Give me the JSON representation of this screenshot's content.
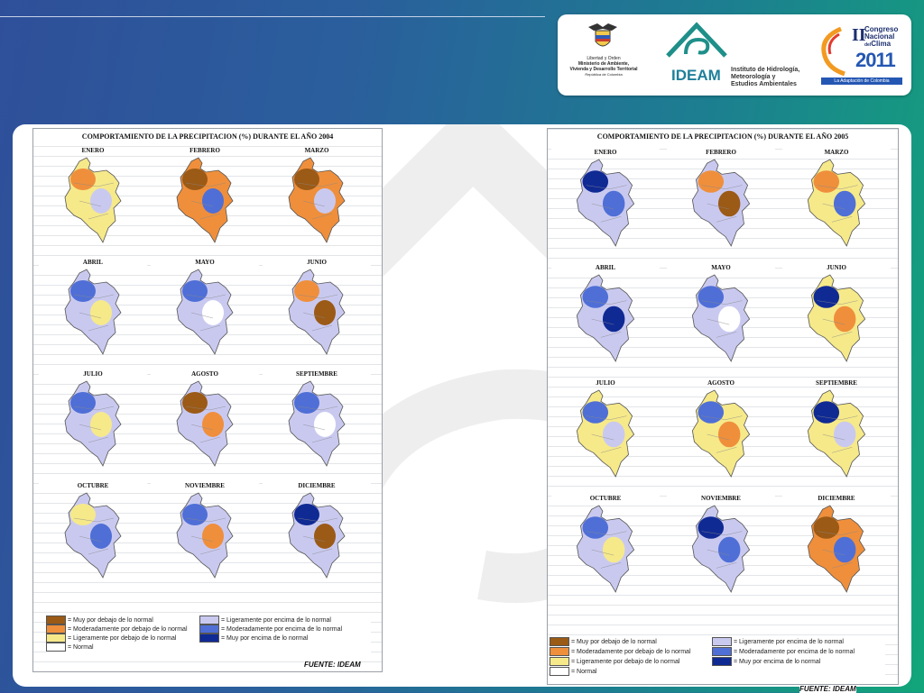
{
  "logos": {
    "ministry_lines": [
      "Libertad y Orden",
      "Ministerio de Ambiente,",
      "Vivienda y Desarrollo Territorial",
      "República de Colombia"
    ],
    "ideam_name": "IDEAM",
    "ideam_lines": [
      "Instituto de Hidrología,",
      "Meteorología y",
      "Estudios Ambientales"
    ],
    "congress_roman": "II",
    "congress_lines": [
      "Congreso",
      "Nacional",
      "Clima"
    ],
    "congress_small": "del",
    "congress_year": "2011",
    "congress_tagline": "La Adaptación de Colombia"
  },
  "colors": {
    "muy_debajo": "#9b5a16",
    "moderadamente_debajo": "#ef8f3c",
    "ligeramente_debajo": "#f6e98a",
    "normal": "#ffffff",
    "ligeramente_encima": "#c9c9f0",
    "moderadamente_encima": "#4f6fd6",
    "muy_encima": "#102a94"
  },
  "sheets": [
    {
      "title": "COMPORTAMIENTO DE LA PRECIPITACION (%) DURANTE EL AÑO 2004",
      "fuente": "FUENTE: IDEAM",
      "months": [
        {
          "name": "ENERO",
          "base": "ligeramente_debajo",
          "spots": [
            "moderadamente_debajo",
            "ligeramente_encima"
          ]
        },
        {
          "name": "FEBRERO",
          "base": "moderadamente_debajo",
          "spots": [
            "muy_debajo",
            "moderadamente_encima"
          ]
        },
        {
          "name": "MARZO",
          "base": "moderadamente_debajo",
          "spots": [
            "muy_debajo",
            "ligeramente_encima"
          ]
        },
        {
          "name": "ABRIL",
          "base": "ligeramente_encima",
          "spots": [
            "moderadamente_encima",
            "ligeramente_debajo"
          ]
        },
        {
          "name": "MAYO",
          "base": "ligeramente_encima",
          "spots": [
            "moderadamente_encima",
            "normal"
          ]
        },
        {
          "name": "JUNIO",
          "base": "ligeramente_encima",
          "spots": [
            "moderadamente_debajo",
            "muy_debajo"
          ]
        },
        {
          "name": "JULIO",
          "base": "ligeramente_encima",
          "spots": [
            "moderadamente_encima",
            "ligeramente_debajo"
          ]
        },
        {
          "name": "AGOSTO",
          "base": "ligeramente_encima",
          "spots": [
            "muy_debajo",
            "moderadamente_debajo"
          ]
        },
        {
          "name": "SEPTIEMBRE",
          "base": "ligeramente_encima",
          "spots": [
            "moderadamente_encima",
            "normal"
          ]
        },
        {
          "name": "OCTUBRE",
          "base": "ligeramente_encima",
          "spots": [
            "ligeramente_debajo",
            "moderadamente_encima"
          ]
        },
        {
          "name": "NOVIEMBRE",
          "base": "ligeramente_encima",
          "spots": [
            "moderadamente_encima",
            "moderadamente_debajo"
          ]
        },
        {
          "name": "DICIEMBRE",
          "base": "ligeramente_encima",
          "spots": [
            "muy_encima",
            "muy_debajo"
          ]
        }
      ],
      "legend": [
        {
          "key": "muy_debajo",
          "label": "= Muy por debajo de lo normal"
        },
        {
          "key": "moderadamente_debajo",
          "label": "= Moderadamente por debajo de lo normal"
        },
        {
          "key": "ligeramente_debajo",
          "label": "= Ligeramente por debajo de lo normal"
        },
        {
          "key": "normal",
          "label": "= Normal"
        },
        {
          "key": "ligeramente_encima",
          "label": "= Ligeramente por encima de lo normal"
        },
        {
          "key": "moderadamente_encima",
          "label": "= Moderadamente por encima de lo normal"
        },
        {
          "key": "muy_encima",
          "label": "= Muy por encima de lo normal"
        }
      ]
    },
    {
      "title": "COMPORTAMIENTO DE LA PRECIPITACION (%) DURANTE EL AÑO 2005",
      "fuente": "FUENTE: IDEAM",
      "months": [
        {
          "name": "ENERO",
          "base": "ligeramente_encima",
          "spots": [
            "muy_encima",
            "moderadamente_encima"
          ]
        },
        {
          "name": "FEBRERO",
          "base": "ligeramente_encima",
          "spots": [
            "moderadamente_debajo",
            "muy_debajo"
          ]
        },
        {
          "name": "MARZO",
          "base": "ligeramente_debajo",
          "spots": [
            "moderadamente_debajo",
            "moderadamente_encima"
          ]
        },
        {
          "name": "ABRIL",
          "base": "ligeramente_encima",
          "spots": [
            "moderadamente_encima",
            "muy_encima"
          ]
        },
        {
          "name": "MAYO",
          "base": "ligeramente_encima",
          "spots": [
            "moderadamente_encima",
            "normal"
          ]
        },
        {
          "name": "JUNIO",
          "base": "ligeramente_debajo",
          "spots": [
            "muy_encima",
            "moderadamente_debajo"
          ]
        },
        {
          "name": "JULIO",
          "base": "ligeramente_debajo",
          "spots": [
            "moderadamente_encima",
            "ligeramente_encima"
          ]
        },
        {
          "name": "AGOSTO",
          "base": "ligeramente_debajo",
          "spots": [
            "moderadamente_encima",
            "moderadamente_debajo"
          ]
        },
        {
          "name": "SEPTIEMBRE",
          "base": "ligeramente_debajo",
          "spots": [
            "muy_encima",
            "ligeramente_encima"
          ]
        },
        {
          "name": "OCTUBRE",
          "base": "ligeramente_encima",
          "spots": [
            "moderadamente_encima",
            "ligeramente_debajo"
          ]
        },
        {
          "name": "NOVIEMBRE",
          "base": "ligeramente_encima",
          "spots": [
            "muy_encima",
            "moderadamente_encima"
          ]
        },
        {
          "name": "DICIEMBRE",
          "base": "moderadamente_debajo",
          "spots": [
            "muy_debajo",
            "moderadamente_encima"
          ]
        }
      ],
      "legend": [
        {
          "key": "muy_debajo",
          "label": "= Muy por debajo de lo normal"
        },
        {
          "key": "moderadamente_debajo",
          "label": "= Moderadamente por debajo de lo normal"
        },
        {
          "key": "ligeramente_debajo",
          "label": "= Ligeramente por debajo de lo normal"
        },
        {
          "key": "normal",
          "label": "= Normal"
        },
        {
          "key": "ligeramente_encima",
          "label": "= Ligeramente por encima de lo normal"
        },
        {
          "key": "moderadamente_encima",
          "label": "= Moderadamente por encima de lo normal"
        },
        {
          "key": "muy_encima",
          "label": "= Muy por encima de lo normal"
        }
      ]
    }
  ]
}
